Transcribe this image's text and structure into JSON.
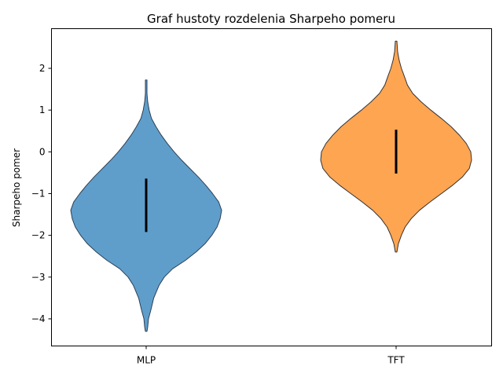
{
  "chart_data": {
    "type": "violin",
    "title": "Graf hustoty rozdelenia Sharpeho pomeru",
    "xlabel": "",
    "ylabel": "Sharpeho pomer",
    "ylim": [
      -4.65,
      2.95
    ],
    "yticks": [
      2,
      1,
      0,
      -1,
      -2,
      -3,
      -4
    ],
    "ytick_labels": [
      "2",
      "1",
      "0",
      "−1",
      "−2",
      "−3",
      "−4"
    ],
    "categories": [
      "MLP",
      "TFT"
    ],
    "grid": false,
    "series": [
      {
        "category": "MLP",
        "color": "#5f9ecb",
        "edge_color": "#2d3f55",
        "min": -4.3,
        "max": 1.72,
        "iqr": [
          -1.92,
          -0.64
        ],
        "profile": [
          [
            -4.3,
            0.01
          ],
          [
            -4.2,
            0.02
          ],
          [
            -4.0,
            0.03
          ],
          [
            -3.8,
            0.06
          ],
          [
            -3.5,
            0.1
          ],
          [
            -3.2,
            0.17
          ],
          [
            -3.0,
            0.24
          ],
          [
            -2.8,
            0.35
          ],
          [
            -2.6,
            0.52
          ],
          [
            -2.4,
            0.66
          ],
          [
            -2.2,
            0.78
          ],
          [
            -2.0,
            0.87
          ],
          [
            -1.8,
            0.94
          ],
          [
            -1.6,
            0.98
          ],
          [
            -1.4,
            1.0
          ],
          [
            -1.2,
            0.96
          ],
          [
            -1.0,
            0.88
          ],
          [
            -0.8,
            0.79
          ],
          [
            -0.6,
            0.69
          ],
          [
            -0.4,
            0.58
          ],
          [
            -0.2,
            0.47
          ],
          [
            0.0,
            0.37
          ],
          [
            0.2,
            0.28
          ],
          [
            0.4,
            0.2
          ],
          [
            0.6,
            0.13
          ],
          [
            0.8,
            0.07
          ],
          [
            1.0,
            0.04
          ],
          [
            1.2,
            0.02
          ],
          [
            1.4,
            0.01
          ],
          [
            1.72,
            0.01
          ]
        ]
      },
      {
        "category": "TFT",
        "color": "#fea552",
        "edge_color": "#333333",
        "min": -2.4,
        "max": 2.65,
        "iqr": [
          -0.52,
          0.53
        ],
        "profile": [
          [
            -2.4,
            0.01
          ],
          [
            -2.2,
            0.03
          ],
          [
            -2.0,
            0.07
          ],
          [
            -1.8,
            0.12
          ],
          [
            -1.6,
            0.2
          ],
          [
            -1.4,
            0.31
          ],
          [
            -1.2,
            0.45
          ],
          [
            -1.0,
            0.6
          ],
          [
            -0.8,
            0.75
          ],
          [
            -0.6,
            0.88
          ],
          [
            -0.4,
            0.97
          ],
          [
            -0.2,
            1.0
          ],
          [
            0.0,
            0.99
          ],
          [
            0.2,
            0.93
          ],
          [
            0.4,
            0.84
          ],
          [
            0.6,
            0.73
          ],
          [
            0.8,
            0.6
          ],
          [
            1.0,
            0.46
          ],
          [
            1.2,
            0.33
          ],
          [
            1.4,
            0.22
          ],
          [
            1.6,
            0.15
          ],
          [
            1.8,
            0.11
          ],
          [
            2.0,
            0.07
          ],
          [
            2.2,
            0.04
          ],
          [
            2.4,
            0.02
          ],
          [
            2.65,
            0.01
          ]
        ]
      }
    ]
  }
}
